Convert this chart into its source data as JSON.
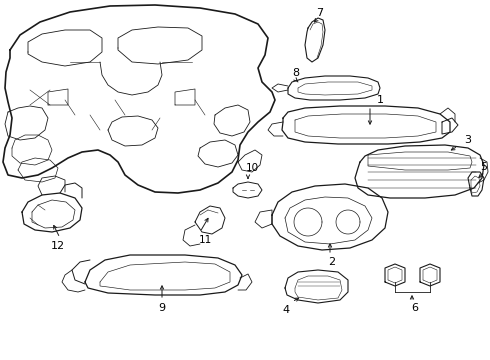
{
  "background_color": "#ffffff",
  "line_color": "#1a1a1a",
  "label_color": "#000000",
  "lw": 0.7,
  "figsize": [
    4.9,
    3.6
  ],
  "dpi": 100
}
